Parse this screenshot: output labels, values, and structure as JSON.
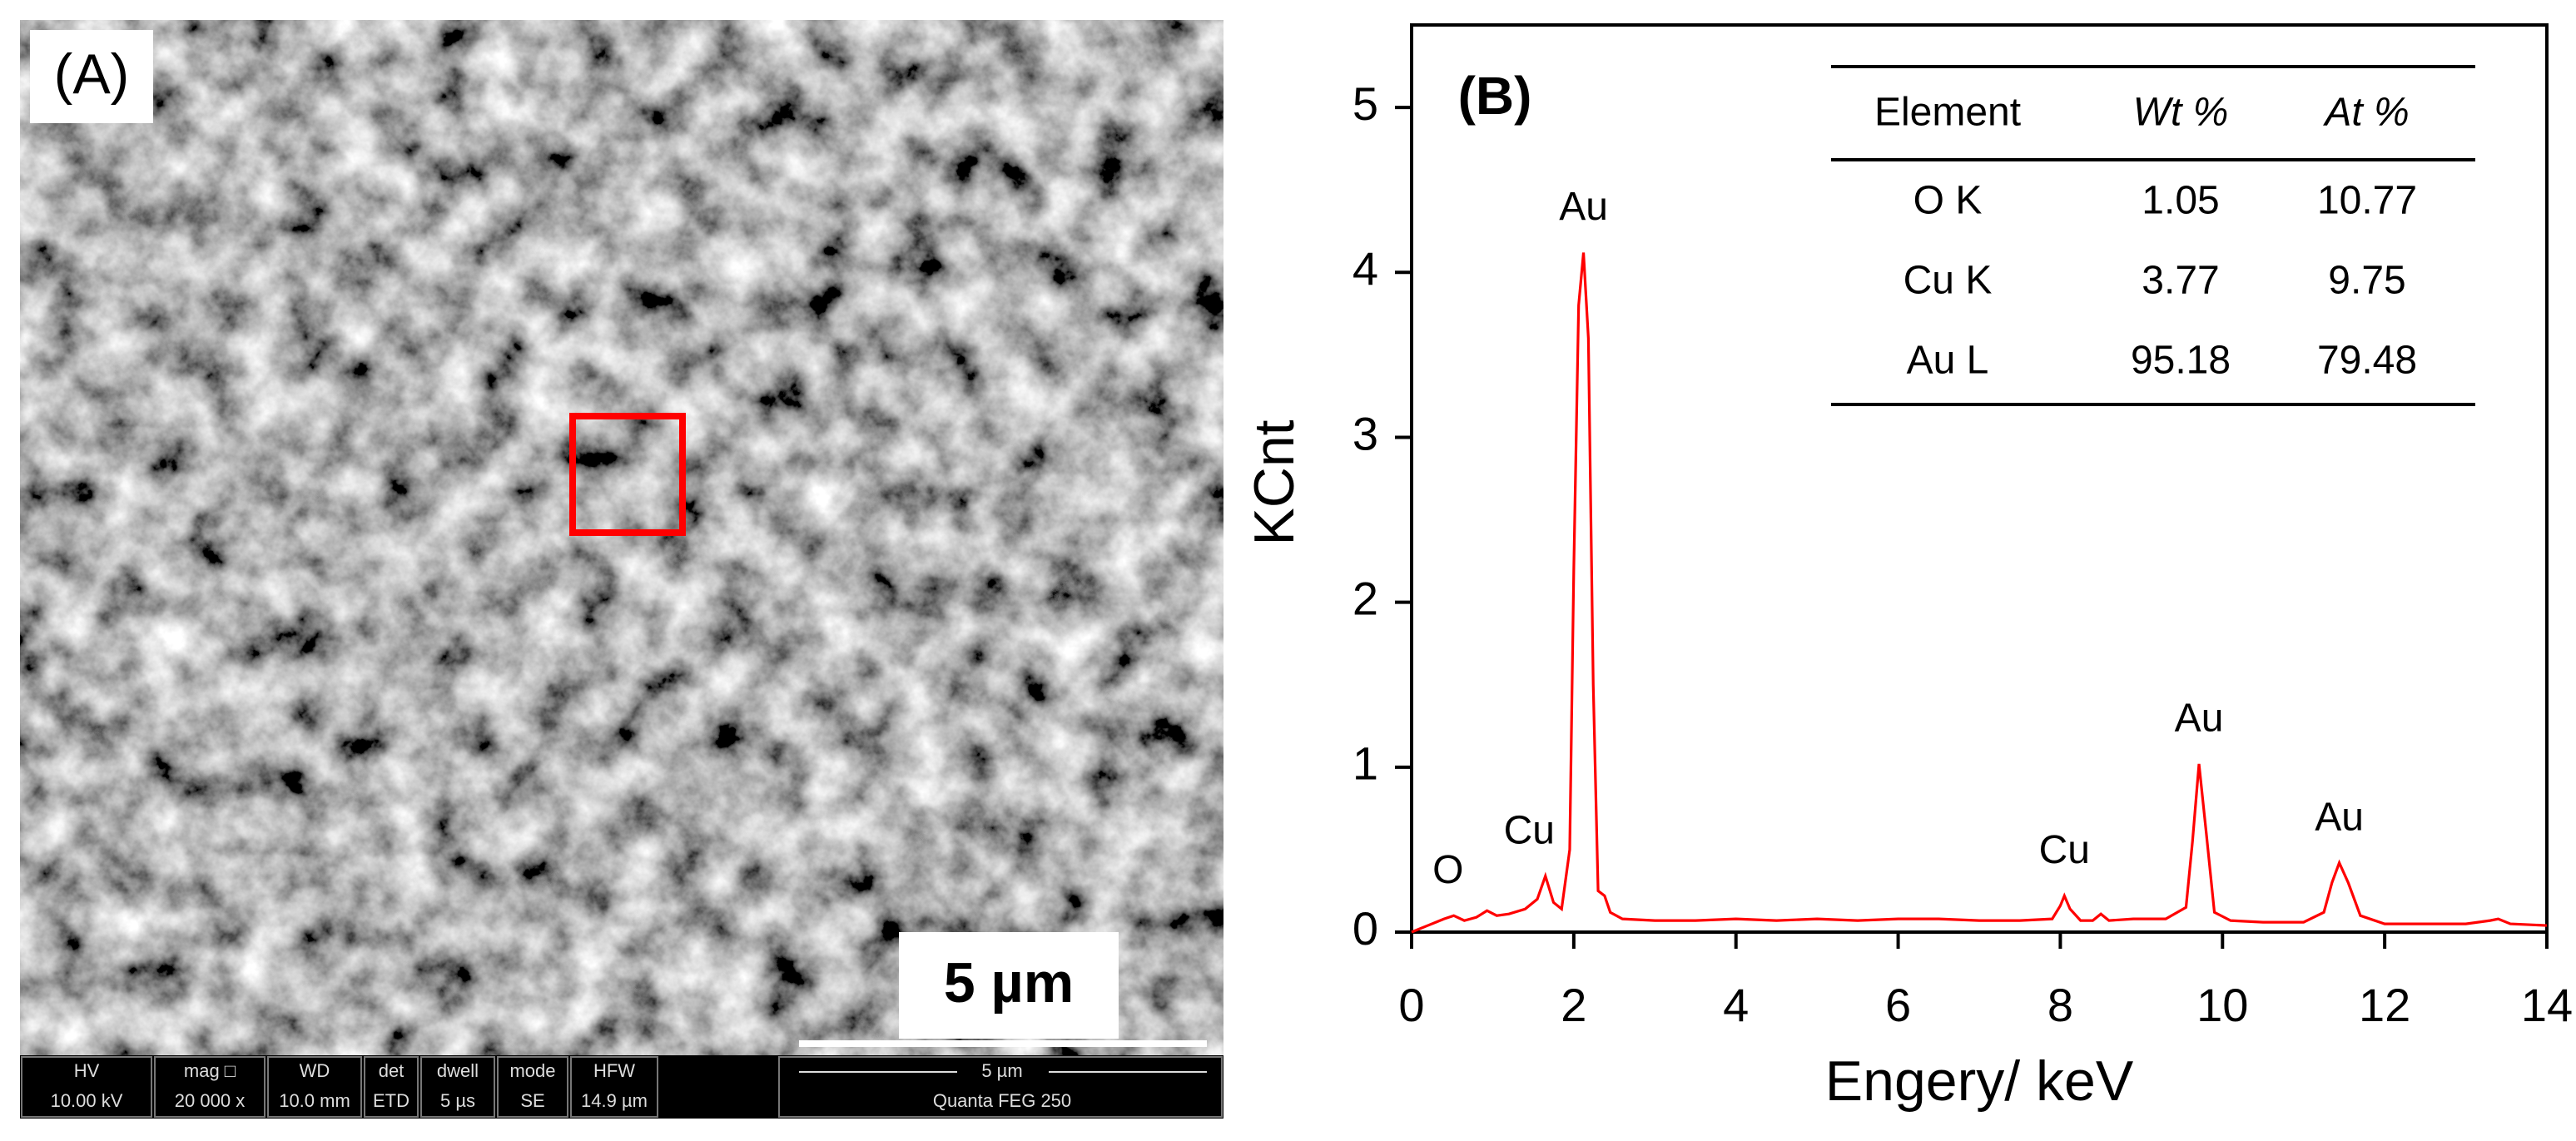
{
  "panel_a": {
    "label": "(A)",
    "scale_label": "5 µm",
    "databar": {
      "columns": [
        {
          "header": "HV",
          "value": "10.00 kV"
        },
        {
          "header": "mag □",
          "value": "20 000 x"
        },
        {
          "header": "WD",
          "value": "10.0 mm"
        },
        {
          "header": "det",
          "value": "ETD"
        },
        {
          "header": "dwell",
          "value": "5 µs"
        },
        {
          "header": "mode",
          "value": "SE"
        },
        {
          "header": "HFW",
          "value": "14.9 µm"
        }
      ],
      "scale": "5 µm",
      "instrument": "Quanta FEG 250"
    }
  },
  "chart_data": {
    "type": "line",
    "panel_label": "(B)",
    "xlabel": "Engery/ keV",
    "ylabel": "KCnt",
    "color": "#ff0000",
    "xlim": [
      0,
      14
    ],
    "xticks": [
      0,
      2,
      4,
      6,
      8,
      10,
      12,
      14
    ],
    "ylim": [
      0,
      5.5
    ],
    "yticks": [
      0,
      1,
      2,
      3,
      4,
      5
    ],
    "x": [
      0,
      0.1,
      0.2,
      0.3,
      0.4,
      0.52,
      0.65,
      0.8,
      0.93,
      1.05,
      1.2,
      1.4,
      1.55,
      1.65,
      1.75,
      1.85,
      1.95,
      2.0,
      2.06,
      2.12,
      2.18,
      2.24,
      2.3,
      2.38,
      2.45,
      2.6,
      3.0,
      3.5,
      4.0,
      4.5,
      5.0,
      5.5,
      6.0,
      6.5,
      7.0,
      7.5,
      7.9,
      8.0,
      8.05,
      8.12,
      8.25,
      8.4,
      8.5,
      8.6,
      8.9,
      9.3,
      9.55,
      9.63,
      9.71,
      9.8,
      9.9,
      10.1,
      10.5,
      11.0,
      11.25,
      11.35,
      11.44,
      11.55,
      11.7,
      12.0,
      12.5,
      13.0,
      13.3,
      13.4,
      13.55,
      14.0
    ],
    "values": [
      0,
      0.02,
      0.04,
      0.06,
      0.08,
      0.1,
      0.07,
      0.09,
      0.13,
      0.1,
      0.11,
      0.14,
      0.2,
      0.34,
      0.18,
      0.14,
      0.5,
      2.2,
      3.8,
      4.12,
      3.6,
      1.5,
      0.25,
      0.22,
      0.12,
      0.08,
      0.07,
      0.07,
      0.08,
      0.07,
      0.08,
      0.07,
      0.08,
      0.08,
      0.07,
      0.07,
      0.08,
      0.16,
      0.22,
      0.14,
      0.07,
      0.07,
      0.11,
      0.07,
      0.08,
      0.08,
      0.15,
      0.55,
      1.02,
      0.6,
      0.12,
      0.07,
      0.06,
      0.06,
      0.12,
      0.3,
      0.42,
      0.3,
      0.1,
      0.05,
      0.05,
      0.05,
      0.07,
      0.08,
      0.05,
      0.04
    ],
    "annotations": [
      {
        "text": "O",
        "x": 0.45
      },
      {
        "text": "Cu",
        "x": 1.45
      },
      {
        "text": "Au",
        "x": 2.12
      },
      {
        "text": "Cu",
        "x": 8.05
      },
      {
        "text": "Au",
        "x": 9.71
      },
      {
        "text": "Au",
        "x": 11.44
      }
    ]
  },
  "table": {
    "header": [
      "Element",
      "Wt %",
      "At %"
    ],
    "rows": [
      [
        "O K",
        1.05,
        10.77
      ],
      [
        "Cu K",
        3.77,
        9.75
      ],
      [
        "Au L",
        95.18,
        79.48
      ]
    ]
  }
}
